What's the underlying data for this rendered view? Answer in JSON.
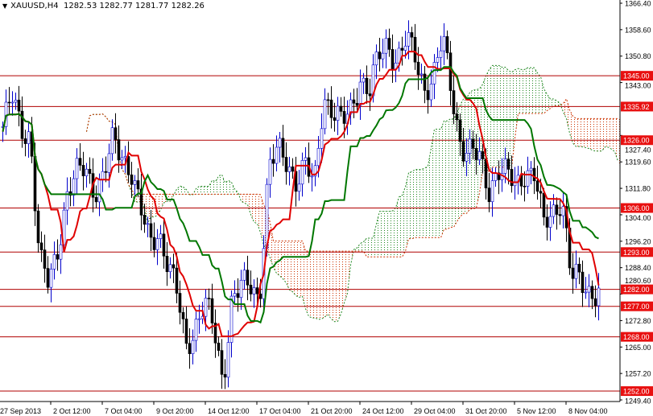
{
  "header": {
    "symbol": "XAUUSD,H4",
    "ohlc": "1282.53 1282.77 1281.77 1282.26"
  },
  "chart_data": {
    "type": "candlestick",
    "symbol": "XAUUSD",
    "timeframe": "H4",
    "ylim": [
      1249.4,
      1366.4
    ],
    "y_ticks": [
      "1366.40",
      "1358.60",
      "1350.80",
      "1343.00",
      "1327.40",
      "1319.60",
      "1311.80",
      "1304.00",
      "1296.20",
      "1288.40",
      "1280.60",
      "1272.80",
      "1265.00",
      "1257.20",
      "1249.40"
    ],
    "x_ticks": [
      "27 Sep 2013",
      "2 Oct 12:00",
      "7 Oct 04:00",
      "9 Oct 20:00",
      "14 Oct 12:00",
      "17 Oct 04:00",
      "21 Oct 20:00",
      "24 Oct 12:00",
      "29 Oct 04:00",
      "31 Oct 20:00",
      "5 Nov 12:00",
      "8 Nov 04:00"
    ],
    "approx_close": [
      1330,
      1338,
      1330,
      1328,
      1290,
      1283,
      1295,
      1310,
      1315,
      1318,
      1312,
      1315,
      1325,
      1322,
      1318,
      1305,
      1295,
      1300,
      1290,
      1280,
      1265,
      1272,
      1278,
      1270,
      1255,
      1280,
      1282,
      1283,
      1280,
      1318,
      1322,
      1320,
      1315,
      1318,
      1312,
      1340,
      1335,
      1330,
      1335,
      1345,
      1340,
      1350,
      1355,
      1350,
      1355,
      1350,
      1342,
      1345,
      1355,
      1340,
      1325,
      1322,
      1320,
      1312,
      1318,
      1315,
      1312,
      1318,
      1316,
      1300,
      1305,
      1310,
      1285,
      1284,
      1282,
      1282
    ],
    "levels": [
      "1345.00",
      "1335.92",
      "1326.00",
      "1306.00",
      "1293.00",
      "1282.00",
      "1277.00",
      "1268.00",
      "1252.00"
    ],
    "indicator": "Ichimoku",
    "colors": {
      "bull": "#0000cc",
      "bear": "#000000",
      "tenkan": "#e00000",
      "kijun": "#007700",
      "span_a": "#228822",
      "span_b": "#cc3300",
      "level": "#b00000",
      "label_bg": "#e81010"
    }
  }
}
